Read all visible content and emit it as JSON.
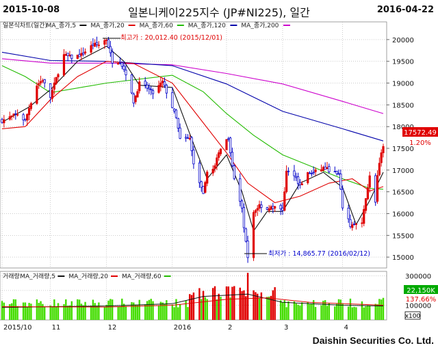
{
  "header": {
    "start_date": "2015-10-08",
    "end_date": "2016-04-22",
    "title": "일본니케이225지수 (JP#NI225), 일간"
  },
  "legend_price": [
    {
      "label": "일본식차트(일간)",
      "color": "#222222"
    },
    {
      "label": "MA_종가,5",
      "color": "#111111"
    },
    {
      "label": "MA_종가,20",
      "color": "#e00000"
    },
    {
      "label": "MA_종가,60",
      "color": "#22bb00"
    },
    {
      "label": "MA_종가,120",
      "color": "#0000aa"
    },
    {
      "label": "MA_종가,200",
      "color": "#cc00cc"
    }
  ],
  "legend_volume": [
    {
      "label": "거래량",
      "color": "#222222"
    },
    {
      "label": "MA_거래량,5",
      "color": "#111111"
    },
    {
      "label": "MA_거래량,20",
      "color": "#e00000"
    },
    {
      "label": "MA_거래량,60",
      "color": "#22bb00"
    }
  ],
  "annotations": {
    "high": "최고가 : 20,012.40 (2015/12/01)",
    "low": "최저가 : 14,865.77 (2016/02/12)"
  },
  "badges": {
    "last_price": "17572.49",
    "change_pct": "1.20%",
    "volume_ma": "22,150K",
    "volume_ratio": "137.66%",
    "volume_scale": "x100"
  },
  "brand": "Daishin Securities Co. Ltd.",
  "chart_data": {
    "type": "candlestick",
    "price_axis": {
      "ticks": [
        15000,
        15500,
        16000,
        16500,
        17000,
        17500,
        18000,
        18500,
        19000,
        19500,
        20000
      ],
      "range": [
        14750,
        20250
      ]
    },
    "volume_axis": {
      "ticks": [
        100000,
        200000,
        300000
      ],
      "tick_labels": [
        "100000",
        "200000",
        "300000"
      ],
      "range": [
        0,
        330000
      ]
    },
    "x_ticks": [
      "2015/10",
      "11",
      "12",
      "2016",
      "2",
      "3",
      "4"
    ],
    "x_tick_dates": [
      "2015-10-08",
      "2015-11-02",
      "2015-12-01",
      "2016-01-04",
      "2016-02-01",
      "2016-03-01",
      "2016-04-01"
    ],
    "x_range": [
      "2015-10-08",
      "2016-04-22"
    ],
    "close_path": [
      [
        "2015-10-08",
        18140
      ],
      [
        "2015-10-13",
        18230
      ],
      [
        "2015-10-16",
        18290
      ],
      [
        "2015-10-20",
        18130
      ],
      [
        "2015-10-22",
        18430
      ],
      [
        "2015-10-26",
        18950
      ],
      [
        "2015-10-29",
        19080
      ],
      [
        "2015-11-02",
        18680
      ],
      [
        "2015-11-05",
        19110
      ],
      [
        "2015-11-09",
        19640
      ],
      [
        "2015-11-13",
        19590
      ],
      [
        "2015-11-18",
        19650
      ],
      [
        "2015-11-24",
        19880
      ],
      [
        "2015-11-27",
        19880
      ],
      [
        "2015-12-01",
        20010
      ],
      [
        "2015-12-04",
        19500
      ],
      [
        "2015-12-08",
        19500
      ],
      [
        "2015-12-11",
        19230
      ],
      [
        "2015-12-15",
        18570
      ],
      [
        "2015-12-18",
        18990
      ],
      [
        "2015-12-22",
        18890
      ],
      [
        "2015-12-25",
        18770
      ],
      [
        "2015-12-30",
        19030
      ],
      [
        "2016-01-04",
        18450
      ],
      [
        "2016-01-06",
        18190
      ],
      [
        "2016-01-08",
        17700
      ],
      [
        "2016-01-13",
        17720
      ],
      [
        "2016-01-15",
        17150
      ],
      [
        "2016-01-20",
        16420
      ],
      [
        "2016-01-22",
        16950
      ],
      [
        "2016-01-26",
        17100
      ],
      [
        "2016-01-29",
        17520
      ],
      [
        "2016-02-02",
        17750
      ],
      [
        "2016-02-05",
        16820
      ],
      [
        "2016-02-09",
        16080
      ],
      [
        "2016-02-12",
        14960
      ],
      [
        "2016-02-15",
        16020
      ],
      [
        "2016-02-18",
        16200
      ],
      [
        "2016-02-22",
        16110
      ],
      [
        "2016-02-25",
        16140
      ],
      [
        "2016-03-01",
        16090
      ],
      [
        "2016-03-03",
        16960
      ],
      [
        "2016-03-07",
        16910
      ],
      [
        "2016-03-10",
        16640
      ],
      [
        "2016-03-14",
        16920
      ],
      [
        "2016-03-17",
        16940
      ],
      [
        "2016-03-22",
        17050
      ],
      [
        "2016-03-25",
        17000
      ],
      [
        "2016-03-30",
        16880
      ],
      [
        "2016-04-01",
        16160
      ],
      [
        "2016-04-05",
        15730
      ],
      [
        "2016-04-07",
        15750
      ],
      [
        "2016-04-11",
        15750
      ],
      [
        "2016-04-13",
        16380
      ],
      [
        "2016-04-15",
        16850
      ],
      [
        "2016-04-18",
        16280
      ],
      [
        "2016-04-19",
        16870
      ],
      [
        "2016-04-21",
        17360
      ],
      [
        "2016-04-22",
        17572.49
      ]
    ],
    "ma_series": [
      {
        "name": "MA_종가,200",
        "color": "#cc00cc",
        "points": [
          [
            "2015-10-08",
            19560
          ],
          [
            "2015-11-02",
            19460
          ],
          [
            "2015-12-01",
            19460
          ],
          [
            "2016-01-04",
            19420
          ],
          [
            "2016-02-01",
            19220
          ],
          [
            "2016-03-01",
            18980
          ],
          [
            "2016-04-01",
            18580
          ],
          [
            "2016-04-22",
            18300
          ]
        ]
      },
      {
        "name": "MA_종가,120",
        "color": "#0000aa",
        "points": [
          [
            "2015-10-08",
            19710
          ],
          [
            "2015-11-02",
            19520
          ],
          [
            "2015-12-01",
            19500
          ],
          [
            "2016-01-04",
            19400
          ],
          [
            "2016-02-01",
            18980
          ],
          [
            "2016-03-01",
            18350
          ],
          [
            "2016-04-01",
            17950
          ],
          [
            "2016-04-22",
            17670
          ]
        ]
      },
      {
        "name": "MA_종가,60",
        "color": "#22bb00",
        "points": [
          [
            "2015-10-08",
            19400
          ],
          [
            "2015-10-20",
            19150
          ],
          [
            "2015-11-02",
            18780
          ],
          [
            "2015-12-01",
            19000
          ],
          [
            "2016-01-04",
            19180
          ],
          [
            "2016-01-20",
            18800
          ],
          [
            "2016-02-01",
            18300
          ],
          [
            "2016-02-15",
            17800
          ],
          [
            "2016-03-01",
            17350
          ],
          [
            "2016-03-15",
            17100
          ],
          [
            "2016-04-01",
            16800
          ],
          [
            "2016-04-15",
            16580
          ],
          [
            "2016-04-22",
            16560
          ]
        ]
      },
      {
        "name": "MA_종가,20",
        "color": "#e00000",
        "points": [
          [
            "2015-10-08",
            17950
          ],
          [
            "2015-10-20",
            18000
          ],
          [
            "2015-11-02",
            18620
          ],
          [
            "2015-11-16",
            19150
          ],
          [
            "2015-12-01",
            19500
          ],
          [
            "2015-12-15",
            19450
          ],
          [
            "2016-01-04",
            19000
          ],
          [
            "2016-01-18",
            18200
          ],
          [
            "2016-02-01",
            17400
          ],
          [
            "2016-02-12",
            16700
          ],
          [
            "2016-02-26",
            16250
          ],
          [
            "2016-03-10",
            16400
          ],
          [
            "2016-03-25",
            16700
          ],
          [
            "2016-04-06",
            16800
          ],
          [
            "2016-04-15",
            16520
          ],
          [
            "2016-04-22",
            16620
          ]
        ]
      },
      {
        "name": "MA_종가,5",
        "color": "#111111",
        "points": [
          [
            "2015-10-08",
            18100
          ],
          [
            "2015-10-22",
            18450
          ],
          [
            "2015-11-02",
            18850
          ],
          [
            "2015-11-16",
            19500
          ],
          [
            "2015-12-01",
            19850
          ],
          [
            "2015-12-10",
            19500
          ],
          [
            "2015-12-18",
            18950
          ],
          [
            "2016-01-04",
            18900
          ],
          [
            "2016-01-15",
            17600
          ],
          [
            "2016-01-22",
            16800
          ],
          [
            "2016-02-01",
            17350
          ],
          [
            "2016-02-09",
            16500
          ],
          [
            "2016-02-15",
            15600
          ],
          [
            "2016-02-22",
            16050
          ],
          [
            "2016-03-01",
            16050
          ],
          [
            "2016-03-10",
            16700
          ],
          [
            "2016-03-22",
            16950
          ],
          [
            "2016-04-01",
            16600
          ],
          [
            "2016-04-08",
            15750
          ],
          [
            "2016-04-15",
            16300
          ],
          [
            "2016-04-22",
            16950
          ]
        ]
      }
    ],
    "volume_ma": [
      {
        "name": "MA_거래량,5",
        "color": "#111111",
        "points": [
          [
            "2015-10-08",
            85000
          ],
          [
            "2015-11-02",
            90000
          ],
          [
            "2015-12-01",
            95000
          ],
          [
            "2016-01-04",
            110000
          ],
          [
            "2016-01-20",
            160000
          ],
          [
            "2016-02-12",
            175000
          ],
          [
            "2016-03-01",
            120000
          ],
          [
            "2016-04-01",
            100000
          ],
          [
            "2016-04-22",
            95000
          ]
        ]
      },
      {
        "name": "MA_거래량,20",
        "color": "#e00000",
        "points": [
          [
            "2015-10-08",
            90000
          ],
          [
            "2015-12-01",
            88000
          ],
          [
            "2016-01-04",
            100000
          ],
          [
            "2016-02-01",
            140000
          ],
          [
            "2016-02-22",
            150000
          ],
          [
            "2016-03-15",
            120000
          ],
          [
            "2016-04-22",
            100000
          ]
        ]
      }
    ]
  }
}
